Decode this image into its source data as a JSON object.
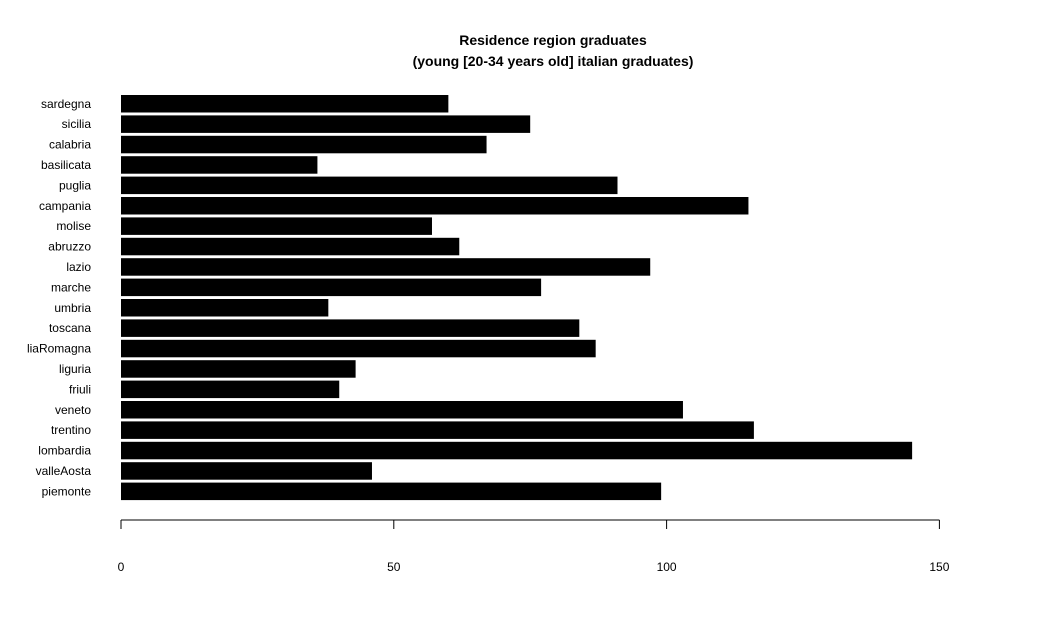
{
  "chart_data": {
    "type": "bar",
    "orientation": "horizontal",
    "title": "Residence region graduates",
    "subtitle": "(young [20-34 years old] italian graduates)",
    "xlabel": "",
    "ylabel": "",
    "xlim": [
      0,
      150
    ],
    "xticks": [
      0,
      50,
      100,
      150
    ],
    "grid": false,
    "categories": [
      "piemonte",
      "valleAosta",
      "lombardia",
      "trentino",
      "veneto",
      "friuli",
      "liguria",
      "liaRomagna",
      "toscana",
      "umbria",
      "marche",
      "lazio",
      "abruzzo",
      "molise",
      "campania",
      "puglia",
      "basilicata",
      "calabria",
      "sicilia",
      "sardegna"
    ],
    "values": [
      99,
      46,
      145,
      116,
      103,
      40,
      43,
      87,
      84,
      38,
      77,
      97,
      62,
      57,
      115,
      91,
      36,
      67,
      75,
      60
    ],
    "bar_color": "#000000"
  }
}
